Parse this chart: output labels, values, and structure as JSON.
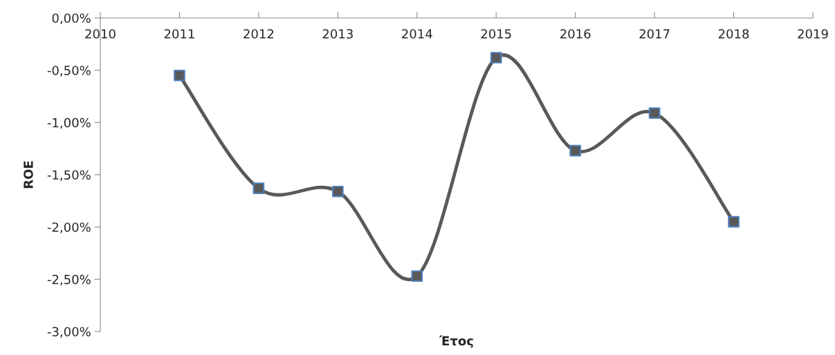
{
  "chart_data": {
    "type": "line",
    "xlabel": "Έτος",
    "ylabel": "ROE",
    "x": [
      2011,
      2012,
      2013,
      2014,
      2015,
      2016,
      2017,
      2018
    ],
    "series": [
      {
        "color": "#595959",
        "values": [
          -0.55,
          -1.63,
          -1.66,
          -2.47,
          -0.38,
          -1.27,
          -0.91,
          -1.95
        ]
      }
    ],
    "xlim": [
      2010,
      2019
    ],
    "xticks": [
      2010,
      2011,
      2012,
      2013,
      2014,
      2015,
      2016,
      2017,
      2018,
      2019
    ],
    "ylim": [
      -3,
      0
    ],
    "yticks": [
      {
        "value": 0,
        "label": "0,00%"
      },
      {
        "value": -0.5,
        "label": "-0,50%"
      },
      {
        "value": -1,
        "label": "-1,00%"
      },
      {
        "value": -1.5,
        "label": "-1,50%"
      },
      {
        "value": -2,
        "label": "-2,00%"
      },
      {
        "value": -2.5,
        "label": "-2,50%"
      },
      {
        "value": -3,
        "label": "-3,00%"
      }
    ],
    "grid": false,
    "legend": false,
    "marker": "square",
    "line_style": "solid"
  }
}
